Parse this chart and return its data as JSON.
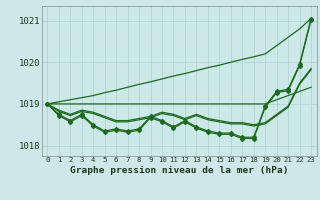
{
  "bg_color": "#cde8e8",
  "grid_color": "#aad0d0",
  "line_color": "#1a6b1a",
  "title": "Graphe pression niveau de la mer (hPa)",
  "xlim": [
    -0.5,
    23.5
  ],
  "ylim": [
    1017.75,
    1021.35
  ],
  "yticks": [
    1018,
    1019,
    1020,
    1021
  ],
  "xticks": [
    0,
    1,
    2,
    3,
    4,
    5,
    6,
    7,
    8,
    9,
    10,
    11,
    12,
    13,
    14,
    15,
    16,
    17,
    18,
    19,
    20,
    21,
    22,
    23
  ],
  "line_steep": [
    1019.0,
    1019.05,
    1019.1,
    1019.15,
    1019.2,
    1019.27,
    1019.33,
    1019.4,
    1019.47,
    1019.53,
    1019.6,
    1019.67,
    1019.73,
    1019.8,
    1019.87,
    1019.93,
    1020.0,
    1020.07,
    1020.13,
    1020.2,
    1020.4,
    1020.6,
    1020.8,
    1021.05
  ],
  "line_medium": [
    1019.0,
    1019.0,
    1019.0,
    1019.0,
    1019.0,
    1019.0,
    1019.0,
    1019.0,
    1019.0,
    1019.0,
    1019.0,
    1019.0,
    1019.0,
    1019.0,
    1019.0,
    1019.0,
    1019.0,
    1019.0,
    1019.0,
    1019.0,
    1019.1,
    1019.2,
    1019.3,
    1019.4
  ],
  "line_flat1": [
    1019.0,
    1018.85,
    1018.75,
    1018.85,
    1018.8,
    1018.7,
    1018.6,
    1018.6,
    1018.65,
    1018.7,
    1018.8,
    1018.75,
    1018.65,
    1018.75,
    1018.65,
    1018.6,
    1018.55,
    1018.55,
    1018.5,
    1018.55,
    1018.75,
    1018.95,
    1019.5,
    1019.85
  ],
  "line_flat2": [
    1019.0,
    1018.82,
    1018.72,
    1018.82,
    1018.77,
    1018.67,
    1018.57,
    1018.57,
    1018.62,
    1018.67,
    1018.77,
    1018.72,
    1018.62,
    1018.72,
    1018.62,
    1018.57,
    1018.52,
    1018.52,
    1018.47,
    1018.52,
    1018.72,
    1018.92,
    1019.47,
    1019.82
  ],
  "line_zigzag": [
    1019.0,
    1018.75,
    1018.6,
    1018.75,
    1018.5,
    1018.35,
    1018.4,
    1018.35,
    1018.4,
    1018.7,
    1018.6,
    1018.45,
    1018.6,
    1018.45,
    1018.35,
    1018.3,
    1018.3,
    1018.2,
    1018.2,
    1018.95,
    1019.3,
    1019.35,
    1019.95,
    1021.05
  ],
  "line_zigzag2": [
    1019.0,
    1018.72,
    1018.57,
    1018.72,
    1018.47,
    1018.32,
    1018.37,
    1018.32,
    1018.37,
    1018.67,
    1018.57,
    1018.42,
    1018.57,
    1018.42,
    1018.32,
    1018.27,
    1018.27,
    1018.17,
    1018.17,
    1018.92,
    1019.27,
    1019.32,
    1019.92,
    1021.02
  ]
}
